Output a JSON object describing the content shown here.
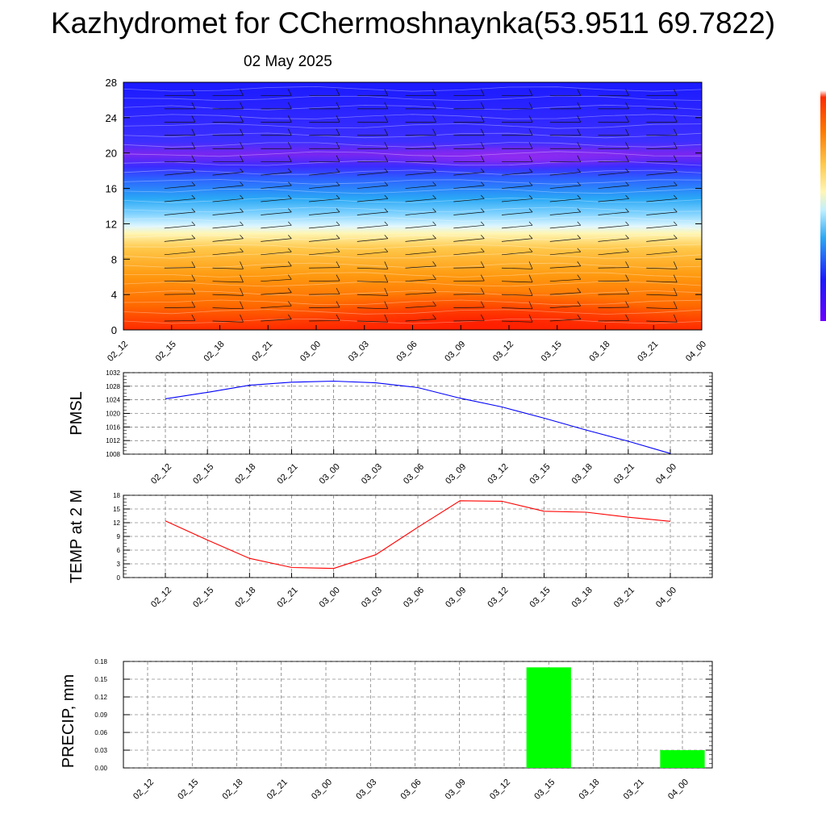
{
  "header": {
    "title": "Kazhydromet for CChermoshnaynka(53.9511 69.7822)",
    "date": "02 May 2025"
  },
  "chart_data": [
    {
      "type": "heatmap",
      "panel": "upper-air",
      "x_ticks": [
        "02_12",
        "02_15",
        "02_18",
        "02_21",
        "03_00",
        "03_03",
        "03_06",
        "03_09",
        "03_12",
        "03_15",
        "03_18",
        "03_21",
        "04_00"
      ],
      "y_ticks": [
        0,
        4,
        8,
        12,
        16,
        20,
        24,
        28
      ],
      "ylim": [
        0,
        28
      ],
      "description_layers": [
        "filled contours",
        "wind barbs"
      ],
      "colorbar": [
        "#ff2a00",
        "#ff7a00",
        "#ffc24d",
        "#fff7b0",
        "#bff0ff",
        "#3fb8ff",
        "#1e50ff",
        "#2a10ff",
        "#8a2be2"
      ]
    },
    {
      "type": "line",
      "panel": "pmsl",
      "ylabel": "PMSL",
      "x": [
        "02_12",
        "02_15",
        "02_18",
        "02_21",
        "03_00",
        "03_03",
        "03_06",
        "03_09",
        "03_12",
        "03_15",
        "03_18",
        "03_21",
        "04_00"
      ],
      "series": [
        {
          "color": "#0000ff",
          "values": [
            1024.3,
            1026.2,
            1028.3,
            1029.2,
            1029.5,
            1029.0,
            1027.6,
            1024.5,
            1021.9,
            1018.6,
            1015.1,
            1011.8,
            1008.2
          ]
        }
      ],
      "ylim": [
        1008,
        1032
      ],
      "y_ticks": [
        1008,
        1012,
        1016,
        1020,
        1024,
        1028,
        1032
      ],
      "grid": true
    },
    {
      "type": "line",
      "panel": "temp",
      "ylabel": "TEMP at 2 M",
      "x": [
        "02_12",
        "02_15",
        "02_18",
        "02_21",
        "03_00",
        "03_03",
        "03_06",
        "03_09",
        "03_12",
        "03_15",
        "03_18",
        "03_21",
        "04_00"
      ],
      "series": [
        {
          "color": "#ff0000",
          "values": [
            12.4,
            8.2,
            4.2,
            2.2,
            2.0,
            5.0,
            11.0,
            16.8,
            16.7,
            14.5,
            14.3,
            13.2,
            12.3
          ]
        }
      ],
      "ylim": [
        0,
        18
      ],
      "y_ticks": [
        0,
        3,
        6,
        9,
        12,
        15,
        18
      ],
      "grid": true
    },
    {
      "type": "bar",
      "panel": "precip",
      "ylabel": "PRECIP, mm",
      "categories": [
        "02_12",
        "02_15",
        "02_18",
        "02_21",
        "03_00",
        "03_03",
        "03_06",
        "03_09",
        "03_12",
        "03_15",
        "03_18",
        "03_21",
        "04_00"
      ],
      "values": [
        0,
        0,
        0,
        0,
        0,
        0,
        0,
        0,
        0,
        0.17,
        0,
        0,
        0.03
      ],
      "bar_color": "#00ff00",
      "ylim": [
        0,
        0.18
      ],
      "y_ticks": [
        "0.00",
        "0.03",
        "0.06",
        "0.09",
        "0.12",
        "0.15",
        "0.18"
      ],
      "grid": true
    }
  ]
}
